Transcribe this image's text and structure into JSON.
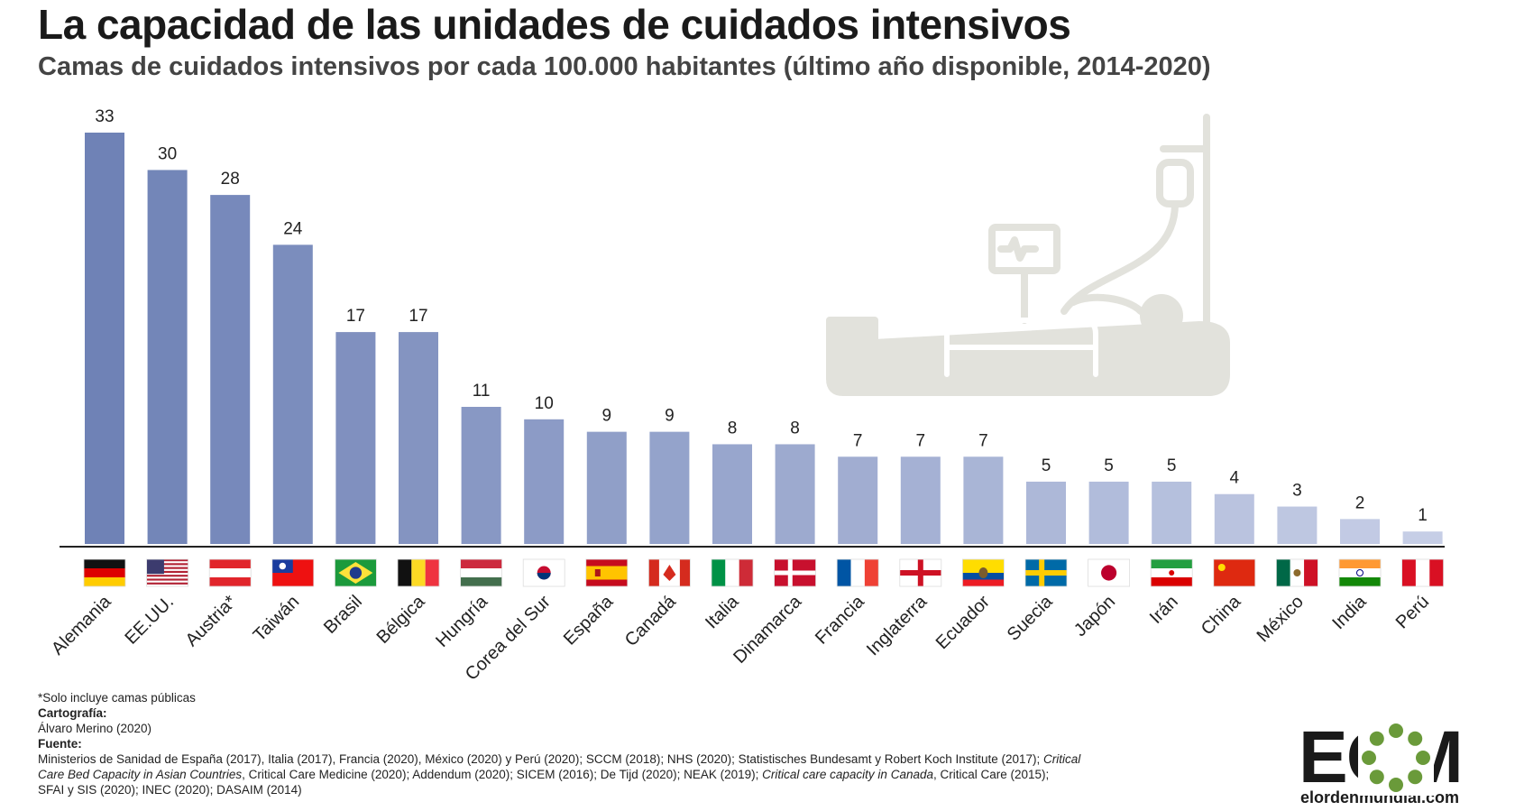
{
  "title": "La capacidad de las unidades de cuidados intensivos",
  "subtitle": "Camas de cuidados intensivos por cada 100.000 habitantes (último año disponible, 2014-2020)",
  "chart_data": {
    "type": "bar",
    "categories": [
      "Alemania",
      "EE.UU.",
      "Austria*",
      "Taiwán",
      "Brasil",
      "Bélgica",
      "Hungría",
      "Corea del Sur",
      "España",
      "Canadá",
      "Italia",
      "Dinamarca",
      "Francia",
      "Inglaterra",
      "Ecuador",
      "Suecia",
      "Japón",
      "Irán",
      "China",
      "México",
      "India",
      "Perú"
    ],
    "values": [
      33,
      30,
      28,
      24,
      17,
      17,
      11,
      10,
      9,
      9,
      8,
      8,
      7,
      7,
      7,
      5,
      5,
      5,
      4,
      3,
      2,
      1
    ],
    "data_labels": [
      "33",
      "30",
      "28",
      "24",
      "17",
      "17",
      "11",
      "10",
      "9",
      "9",
      "8",
      "8",
      "7",
      "7",
      "7",
      "5",
      "5",
      "5",
      "4",
      "3",
      "2",
      "1"
    ],
    "ylim": [
      0,
      34
    ],
    "bar_color_start": "#6f82b6",
    "bar_color_end": "#c6cee6",
    "grid": false
  },
  "notes": {
    "footnote": "*Solo incluye camas públicas",
    "cartography_label": "Cartografía:",
    "cartography": "Álvaro Merino (2020)",
    "source_label": "Fuente:",
    "source_1": "Ministerios de Sanidad de España (2017), Italia (2017), Francia (2020), México (2020) y Perú (2020); SCCM (2018); NHS (2020);  Statistisches Bundesamt y Robert Koch Institute (2017); ",
    "source_1_italic": "Critical",
    "source_2_italic": "Care Bed Capacity in Asian Countries",
    "source_2": ", Critical Care Medicine (2020); Addendum (2020); SICEM (2016); De Tijd (2020); NEAK (2019); ",
    "source_2b_italic": "Critical care capacity in Canada",
    "source_2c": ", Critical Care (2015);",
    "source_3": "SFAI y SIS (2020); INEC (2020); DASAIM (2014)"
  },
  "logo": {
    "letters": "EOM",
    "url": "elordenmundial.com",
    "dot_color": "#6a9a3a"
  },
  "flag_icons": [
    "germany-flag-icon",
    "usa-flag-icon",
    "austria-flag-icon",
    "taiwan-flag-icon",
    "brazil-flag-icon",
    "belgium-flag-icon",
    "hungary-flag-icon",
    "south-korea-flag-icon",
    "spain-flag-icon",
    "canada-flag-icon",
    "italy-flag-icon",
    "denmark-flag-icon",
    "france-flag-icon",
    "england-flag-icon",
    "ecuador-flag-icon",
    "sweden-flag-icon",
    "japan-flag-icon",
    "iran-flag-icon",
    "china-flag-icon",
    "mexico-flag-icon",
    "india-flag-icon",
    "peru-flag-icon"
  ],
  "illustration": "hospital-bed-icon"
}
